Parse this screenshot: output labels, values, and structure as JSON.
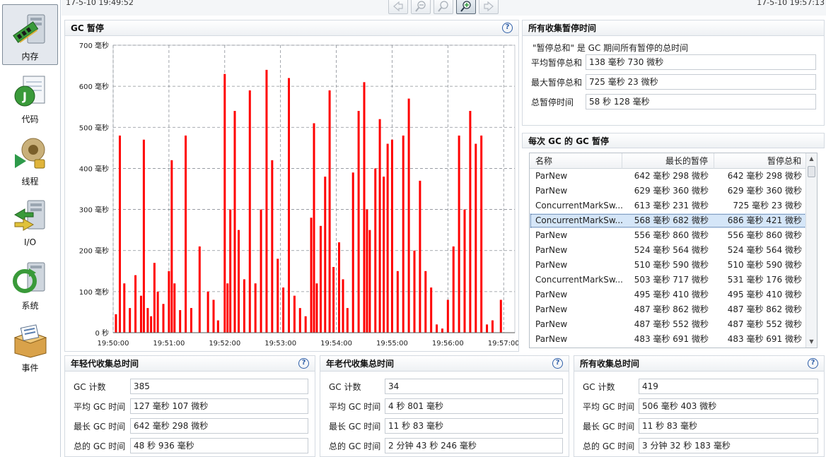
{
  "nav": {
    "items": [
      {
        "label": "内存",
        "icon": "memory-icon",
        "active": true
      },
      {
        "label": "代码",
        "icon": "code-icon"
      },
      {
        "label": "线程",
        "icon": "thread-icon"
      },
      {
        "label": "I/O",
        "icon": "io-icon"
      },
      {
        "label": "系统",
        "icon": "system-icon"
      },
      {
        "label": "事件",
        "icon": "event-icon"
      }
    ]
  },
  "topbar": {
    "start_time": "17-5-10 19:49:52",
    "end_time": "17-5-10 19:57:13",
    "toolbar_icons": [
      "nav-back-icon",
      "zoom-out-icon",
      "zoom-reset-icon",
      "zoom-in-icon",
      "nav-forward-icon"
    ]
  },
  "gc_pause": {
    "title": "GC 暂停",
    "help": "?",
    "chart_data": {
      "type": "bar",
      "title": "GC 暂停",
      "color": "#ff0000",
      "y_unit": "毫秒",
      "ylim": [
        0,
        700
      ],
      "yticks": [
        "0 秒",
        "100 毫秒",
        "200 毫秒",
        "300 毫秒",
        "400 毫秒",
        "500 毫秒",
        "600 毫秒",
        "700 毫秒"
      ],
      "xticks": [
        "19:50:00",
        "19:51:00",
        "19:52:00",
        "19:53:00",
        "19:54:00",
        "19:55:00",
        "19:56:00",
        "19:57:00"
      ],
      "grid": true,
      "x_minutes": [
        0.05,
        0.12,
        0.2,
        0.3,
        0.4,
        0.5,
        0.55,
        0.62,
        0.68,
        0.74,
        0.8,
        0.9,
        1.0,
        1.05,
        1.1,
        1.2,
        1.3,
        1.4,
        1.55,
        1.7,
        1.8,
        1.88,
        2.0,
        2.05,
        2.1,
        2.18,
        2.25,
        2.35,
        2.45,
        2.55,
        2.65,
        2.75,
        2.85,
        2.95,
        3.05,
        3.15,
        3.25,
        3.35,
        3.45,
        3.55,
        3.6,
        3.65,
        3.72,
        3.8,
        3.88,
        3.95,
        4.05,
        4.12,
        4.2,
        4.3,
        4.4,
        4.5,
        4.55,
        4.6,
        4.7,
        4.78,
        4.85,
        4.92,
        5.0,
        5.1,
        5.2,
        5.3,
        5.4,
        5.5,
        5.6,
        5.7,
        5.8,
        5.9,
        6.0,
        6.1,
        6.2,
        6.3,
        6.4,
        6.5,
        6.6,
        6.7,
        6.8,
        6.95
      ],
      "values_ms": [
        45,
        480,
        120,
        60,
        140,
        90,
        470,
        60,
        40,
        170,
        100,
        70,
        150,
        420,
        120,
        55,
        480,
        60,
        210,
        100,
        80,
        30,
        630,
        120,
        300,
        540,
        250,
        130,
        590,
        120,
        300,
        640,
        420,
        180,
        110,
        620,
        90,
        60,
        40,
        280,
        510,
        120,
        260,
        380,
        590,
        160,
        220,
        130,
        60,
        390,
        540,
        610,
        300,
        250,
        400,
        520,
        380,
        460,
        470,
        150,
        480,
        570,
        200,
        370,
        150,
        110,
        20,
        10,
        80,
        210,
        480,
        300,
        540,
        460,
        480,
        20,
        30,
        80
      ],
      "values": [
        45,
        480,
        120,
        60,
        140,
        90,
        470,
        60,
        40,
        170,
        100,
        70,
        150,
        420,
        120,
        55,
        480,
        60,
        210,
        100,
        80,
        30,
        630,
        120,
        300,
        540,
        250,
        130,
        590,
        120,
        300,
        640,
        420,
        180,
        110,
        620,
        90,
        60,
        40,
        280,
        510,
        120,
        260,
        380,
        590,
        160,
        220,
        130,
        60,
        390,
        540,
        610,
        300,
        250,
        400,
        520,
        380,
        460,
        470,
        150,
        480,
        570,
        200,
        370,
        150,
        110,
        20,
        10,
        80,
        210,
        480,
        300,
        540,
        460,
        480,
        20,
        30,
        80
      ]
    }
  },
  "total_pause": {
    "title": "所有收集暂停时间",
    "description": "\"暂停总和\" 是 GC 期间所有暂停的总时间",
    "fields": [
      {
        "label": "平均暂停总和",
        "value": "138 毫秒 730 微秒"
      },
      {
        "label": "最大暂停总和",
        "value": "725 毫秒 23 微秒"
      },
      {
        "label": "总暂停时间",
        "value": "58 秒 128 毫秒"
      }
    ]
  },
  "per_gc": {
    "title": "每次 GC 的 GC 暂停",
    "columns": [
      "名称",
      "最长的暂停",
      "暂停总和"
    ],
    "rows": [
      [
        "ParNew",
        "642 毫秒 298 微秒",
        "642 毫秒 298 微秒"
      ],
      [
        "ParNew",
        "629 毫秒 360 微秒",
        "629 毫秒 360 微秒"
      ],
      [
        "ConcurrentMarkSw...",
        "613 毫秒 231 微秒",
        "725 毫秒 23 微秒"
      ],
      [
        "ConcurrentMarkSw...",
        "568 毫秒 682 微秒",
        "686 毫秒 421 微秒"
      ],
      [
        "ParNew",
        "556 毫秒 860 微秒",
        "556 毫秒 860 微秒"
      ],
      [
        "ParNew",
        "524 毫秒 564 微秒",
        "524 毫秒 564 微秒"
      ],
      [
        "ParNew",
        "510 毫秒 590 微秒",
        "510 毫秒 590 微秒"
      ],
      [
        "ConcurrentMarkSw...",
        "503 毫秒 717 微秒",
        "531 毫秒 176 微秒"
      ],
      [
        "ParNew",
        "495 毫秒 410 微秒",
        "495 毫秒 410 微秒"
      ],
      [
        "ParNew",
        "487 毫秒 862 微秒",
        "487 毫秒 862 微秒"
      ],
      [
        "ParNew",
        "487 毫秒 552 微秒",
        "487 毫秒 552 微秒"
      ],
      [
        "ParNew",
        "483 毫秒 691 微秒",
        "483 毫秒 691 微秒"
      ]
    ],
    "selected_row": 3
  },
  "young": {
    "title": "年轻代收集总时间",
    "fields": [
      {
        "label": "GC 计数",
        "value": "385"
      },
      {
        "label": "平均 GC 时间",
        "value": "127 毫秒 107 微秒"
      },
      {
        "label": "最长 GC 时间",
        "value": "642 毫秒 298 微秒"
      },
      {
        "label": "总的 GC 时间",
        "value": "48 秒 936 毫秒"
      }
    ]
  },
  "old": {
    "title": "年老代收集总时间",
    "fields": [
      {
        "label": "GC 计数",
        "value": "34"
      },
      {
        "label": "平均 GC 时间",
        "value": "4 秒 801 毫秒"
      },
      {
        "label": "最长 GC 时间",
        "value": "11 秒 83 毫秒"
      },
      {
        "label": "总的 GC 时间",
        "value": "2 分钟 43 秒 246 毫秒"
      }
    ]
  },
  "all": {
    "title": "所有收集总时间",
    "fields": [
      {
        "label": "GC 计数",
        "value": "419"
      },
      {
        "label": "平均 GC 时间",
        "value": "506 毫秒 403 微秒"
      },
      {
        "label": "最长 GC 时间",
        "value": "11 秒 83 毫秒"
      },
      {
        "label": "总的 GC 时间",
        "value": "3 分钟 32 秒 183 毫秒"
      }
    ]
  }
}
